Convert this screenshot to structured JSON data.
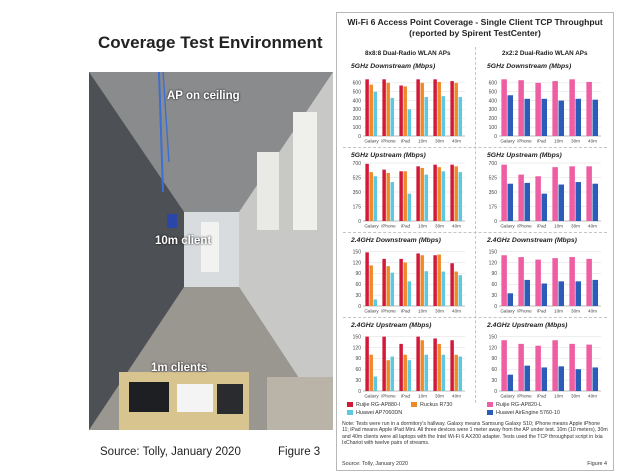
{
  "left": {
    "title": "Coverage Test Environment",
    "labels": {
      "ap": "AP on ceiling",
      "client10": "10m client",
      "client1": "1m clients"
    },
    "source": "Source: Tolly, January 2020",
    "figure": "Figure 3"
  },
  "panel": {
    "title_line1": "Wi-Fi 6 Access Point Coverage - Single Client TCP Throughput",
    "title_line2": "(reported by Spirent TestCenter)",
    "group_left": "8x8:8 Dual-Radio WLAN APs",
    "group_right": "2x2:2 Dual-Radio WLAN APs",
    "note": "Note: Tests were run in a dormitory's hallway. Galaxy means Samsung Galaxy S10; iPhone means Apple iPhone 11; iPad means Apple iPad Mini. All three devices were 1 meter away from the AP under test. 10m (10 meters), 30m and 40m clients were all laptops with the Intel Wi-Fi 6 AX200 adapter. Tests used the TCP throughput script in Ixia IxChariot with twelve pairs of streams.",
    "source": "Source: Tolly, January 2020",
    "figure": "Figure 4",
    "legend": [
      {
        "name": "Ruijie RG-AP880-I",
        "color": "#d2193a"
      },
      {
        "name": "Ruckus R730",
        "color": "#f0892a"
      },
      {
        "name": "Huawei AP7060DN",
        "color": "#5ec8de"
      },
      {
        "name": "Ruijie RG-AP820-L",
        "color": "#ee5ea2"
      },
      {
        "name": "Huawei AirEngine 5760-10",
        "color": "#2a5cb8"
      }
    ]
  },
  "chart_data": [
    {
      "type": "bar",
      "title": "5GHz Downstream (Mbps)",
      "group": "8x8:8 Dual-Radio WLAN APs",
      "categories": [
        "Galaxy",
        "iPhone",
        "iPad",
        "10m",
        "30m",
        "40m"
      ],
      "ylim": [
        0,
        700
      ],
      "yticks": [
        0,
        100,
        200,
        300,
        400,
        500,
        600
      ],
      "series": [
        {
          "name": "Ruijie RG-AP880-I",
          "color": "#d2193a",
          "values": [
            640,
            640,
            570,
            640,
            640,
            620
          ]
        },
        {
          "name": "Ruckus R730",
          "color": "#f0892a",
          "values": [
            580,
            600,
            560,
            600,
            610,
            600
          ]
        },
        {
          "name": "Huawei AP7060DN",
          "color": "#5ec8de",
          "values": [
            500,
            430,
            300,
            440,
            450,
            440
          ]
        }
      ]
    },
    {
      "type": "bar",
      "title": "5GHz Downstream (Mbps)",
      "group": "2x2:2 Dual-Radio WLAN APs",
      "categories": [
        "Galaxy",
        "iPhone",
        "iPad",
        "10m",
        "30m",
        "40m"
      ],
      "ylim": [
        0,
        700
      ],
      "yticks": [
        0,
        100,
        200,
        300,
        400,
        500,
        600
      ],
      "series": [
        {
          "name": "Ruijie RG-AP820-L",
          "color": "#ee5ea2",
          "values": [
            640,
            630,
            600,
            620,
            640,
            610
          ]
        },
        {
          "name": "Huawei AirEngine 5760-10",
          "color": "#2a5cb8",
          "values": [
            460,
            420,
            420,
            400,
            420,
            410
          ]
        }
      ]
    },
    {
      "type": "bar",
      "title": "5GHz Upstream (Mbps)",
      "group": "8x8:8 Dual-Radio WLAN APs",
      "categories": [
        "Galaxy",
        "iPhone",
        "iPad",
        "10m",
        "30m",
        "40m"
      ],
      "ylim": [
        0,
        700
      ],
      "yticks": [
        0,
        175,
        350,
        525,
        700
      ],
      "series": [
        {
          "name": "Ruijie RG-AP880-I",
          "color": "#d2193a",
          "values": [
            690,
            620,
            600,
            660,
            680,
            680
          ]
        },
        {
          "name": "Ruckus R730",
          "color": "#f0892a",
          "values": [
            590,
            580,
            600,
            640,
            650,
            660
          ]
        },
        {
          "name": "Huawei AP7060DN",
          "color": "#5ec8de",
          "values": [
            540,
            470,
            330,
            560,
            600,
            590
          ]
        }
      ]
    },
    {
      "type": "bar",
      "title": "5GHz Upstream (Mbps)",
      "group": "2x2:2 Dual-Radio WLAN APs",
      "categories": [
        "Galaxy",
        "iPhone",
        "iPad",
        "10m",
        "30m",
        "40m"
      ],
      "ylim": [
        0,
        700
      ],
      "yticks": [
        0,
        175,
        350,
        525,
        700
      ],
      "series": [
        {
          "name": "Ruijie RG-AP820-L",
          "color": "#ee5ea2",
          "values": [
            680,
            560,
            540,
            650,
            660,
            660
          ]
        },
        {
          "name": "Huawei AirEngine 5760-10",
          "color": "#2a5cb8",
          "values": [
            450,
            460,
            330,
            440,
            470,
            450
          ]
        }
      ]
    },
    {
      "type": "bar",
      "title": "2.4GHz Downstream (Mbps)",
      "group": "8x8:8 Dual-Radio WLAN APs",
      "categories": [
        "Galaxy",
        "iPhone",
        "iPad",
        "10m",
        "30m",
        "40m"
      ],
      "ylim": [
        0,
        160
      ],
      "yticks": [
        0,
        30,
        60,
        90,
        120,
        150
      ],
      "series": [
        {
          "name": "Ruijie RG-AP880-I",
          "color": "#d2193a",
          "values": [
            148,
            130,
            130,
            145,
            140,
            118
          ]
        },
        {
          "name": "Ruckus R730",
          "color": "#f0892a",
          "values": [
            112,
            110,
            120,
            140,
            142,
            95
          ]
        },
        {
          "name": "Huawei AP7060DN",
          "color": "#5ec8de",
          "values": [
            18,
            92,
            68,
            96,
            95,
            85
          ]
        }
      ]
    },
    {
      "type": "bar",
      "title": "2.4GHz Downstream (Mbps)",
      "group": "2x2:2 Dual-Radio WLAN APs",
      "categories": [
        "Galaxy",
        "iPhone",
        "iPad",
        "10m",
        "30m",
        "40m"
      ],
      "ylim": [
        0,
        160
      ],
      "yticks": [
        0,
        30,
        60,
        90,
        120,
        150
      ],
      "series": [
        {
          "name": "Ruijie RG-AP820-L",
          "color": "#ee5ea2",
          "values": [
            140,
            135,
            128,
            132,
            135,
            130
          ]
        },
        {
          "name": "Huawei AirEngine 5760-10",
          "color": "#2a5cb8",
          "values": [
            35,
            72,
            62,
            68,
            68,
            72
          ]
        }
      ]
    },
    {
      "type": "bar",
      "title": "2.4GHz Upstream (Mbps)",
      "group": "8x8:8 Dual-Radio WLAN APs",
      "categories": [
        "Galaxy",
        "iPhone",
        "iPad",
        "10m",
        "30m",
        "40m"
      ],
      "ylim": [
        0,
        160
      ],
      "yticks": [
        0,
        30,
        60,
        90,
        120,
        150
      ],
      "series": [
        {
          "name": "Ruijie RG-AP880-I",
          "color": "#d2193a",
          "values": [
            150,
            150,
            130,
            150,
            145,
            140
          ]
        },
        {
          "name": "Ruckus R730",
          "color": "#f0892a",
          "values": [
            100,
            85,
            100,
            140,
            130,
            100
          ]
        },
        {
          "name": "Huawei AP7060DN",
          "color": "#5ec8de",
          "values": [
            40,
            95,
            85,
            100,
            100,
            95
          ]
        }
      ]
    },
    {
      "type": "bar",
      "title": "2.4GHz Upstream (Mbps)",
      "group": "2x2:2 Dual-Radio WLAN APs",
      "categories": [
        "Galaxy",
        "iPhone",
        "iPad",
        "10m",
        "30m",
        "40m"
      ],
      "ylim": [
        0,
        160
      ],
      "yticks": [
        0,
        30,
        60,
        90,
        120,
        150
      ],
      "series": [
        {
          "name": "Ruijie RG-AP820-L",
          "color": "#ee5ea2",
          "values": [
            140,
            130,
            125,
            140,
            130,
            128
          ]
        },
        {
          "name": "Huawei AirEngine 5760-10",
          "color": "#2a5cb8",
          "values": [
            45,
            70,
            65,
            68,
            60,
            65
          ]
        }
      ]
    }
  ]
}
